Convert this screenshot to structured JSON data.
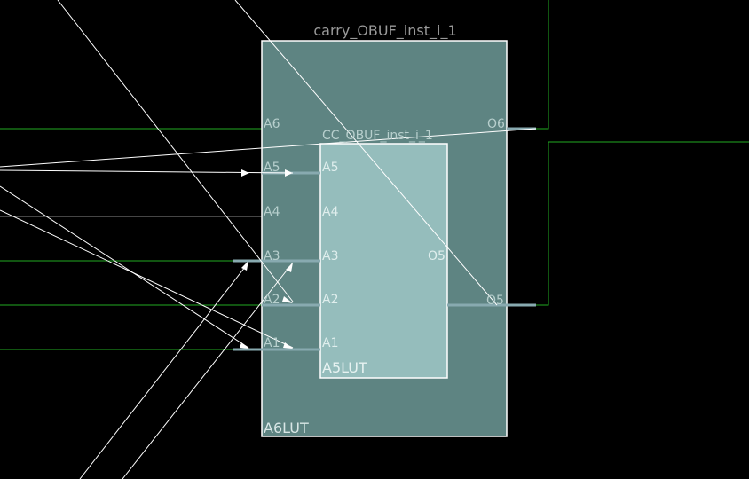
{
  "cell": {
    "title": "carry_OBUF_inst_i_1",
    "outer_name": "A6LUT",
    "inner_name": "A5LUT",
    "inner_cell_label": "CC_OBUF_inst_i_1"
  },
  "outer_pins": {
    "inputs": [
      "A6",
      "A5",
      "A4",
      "A3",
      "A2",
      "A1"
    ],
    "outputs": [
      "O6",
      "O5"
    ]
  },
  "inner_pins": {
    "inputs": [
      "A5",
      "A4",
      "A3",
      "A2",
      "A1"
    ],
    "output": "O5"
  },
  "colors": {
    "background": "#000000",
    "outer_fill": "#5e8482",
    "inner_fill": "#95bdbc",
    "border": "#ffffff",
    "net_green": "#22aa22",
    "net_gray": "#8a8a8a",
    "selected_net": "#ffffff",
    "pin_stub": "#88aab0",
    "title_text": "#9a9a9a",
    "pin_text": "#b7cfcd"
  }
}
